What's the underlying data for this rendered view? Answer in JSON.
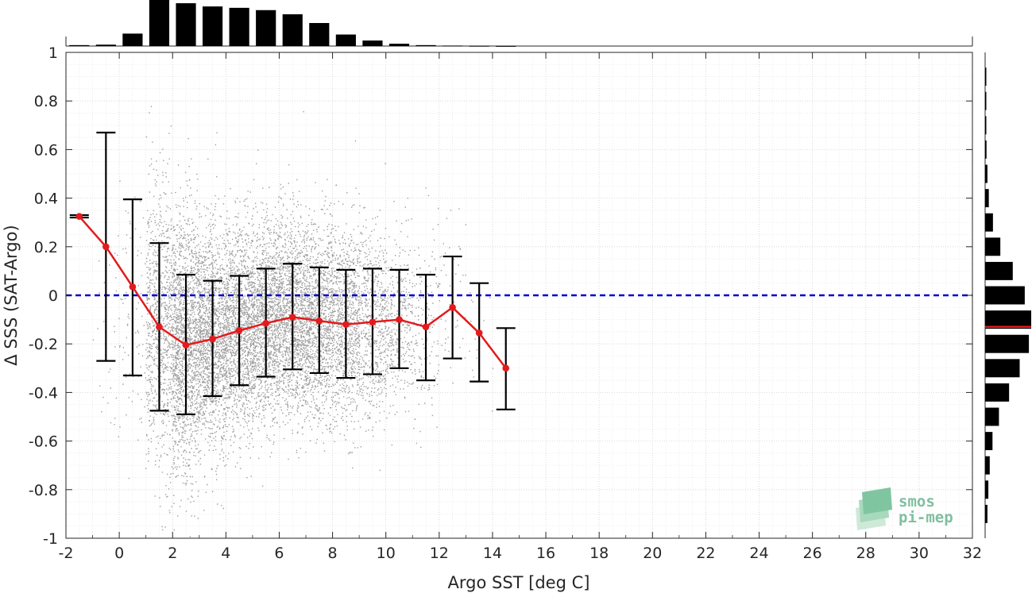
{
  "chart_data": {
    "type": "scatter",
    "xlabel": "Argo SST [deg C]",
    "ylabel": "Δ SSS (SAT-Argo)",
    "xlim": [
      -2,
      32
    ],
    "ylim": [
      -1,
      1
    ],
    "xticks": [
      -2,
      0,
      2,
      4,
      6,
      8,
      10,
      12,
      14,
      16,
      18,
      20,
      22,
      24,
      26,
      28,
      30,
      32
    ],
    "yticks": [
      -1,
      -0.8,
      -0.6,
      -0.4,
      -0.2,
      0,
      0.2,
      0.4,
      0.6,
      0.8,
      1
    ],
    "grid": true,
    "reference_line": {
      "y": 0,
      "style": "dashed",
      "color": "#0000cc"
    },
    "binned_mean": {
      "color": "#e41a1c",
      "x": [
        -1.5,
        -0.5,
        0.5,
        1.5,
        2.5,
        3.5,
        4.5,
        5.5,
        6.5,
        7.5,
        8.5,
        9.5,
        10.5,
        11.5,
        12.5,
        13.5,
        14.5
      ],
      "mean": [
        0.325,
        0.2,
        0.035,
        -0.13,
        -0.205,
        -0.18,
        -0.145,
        -0.115,
        -0.09,
        -0.105,
        -0.12,
        -0.11,
        -0.1,
        -0.13,
        -0.05,
        -0.155,
        -0.3
      ],
      "err_low": [
        0.32,
        -0.27,
        -0.33,
        -0.475,
        -0.49,
        -0.415,
        -0.37,
        -0.335,
        -0.305,
        -0.32,
        -0.34,
        -0.325,
        -0.3,
        -0.35,
        -0.26,
        -0.355,
        -0.47
      ],
      "err_high": [
        0.33,
        0.67,
        0.395,
        0.215,
        0.085,
        0.06,
        0.08,
        0.11,
        0.13,
        0.115,
        0.105,
        0.11,
        0.105,
        0.085,
        0.16,
        0.05,
        -0.135
      ]
    },
    "scatter": {
      "color": "#8c8c8c",
      "density_by_x": [
        {
          "x": -0.5,
          "weight": 0.02,
          "center": -0.1,
          "spread": 0.3
        },
        {
          "x": 0.5,
          "weight": 0.05,
          "center": -0.1,
          "spread": 0.3
        },
        {
          "x": 1.5,
          "weight": 0.55,
          "center": -0.13,
          "spread": 0.32
        },
        {
          "x": 2.5,
          "weight": 1.0,
          "center": -0.2,
          "spread": 0.3
        },
        {
          "x": 3.5,
          "weight": 0.9,
          "center": -0.18,
          "spread": 0.25
        },
        {
          "x": 4.5,
          "weight": 0.85,
          "center": -0.14,
          "spread": 0.23
        },
        {
          "x": 5.5,
          "weight": 0.85,
          "center": -0.11,
          "spread": 0.22
        },
        {
          "x": 6.5,
          "weight": 0.8,
          "center": -0.09,
          "spread": 0.22
        },
        {
          "x": 7.5,
          "weight": 0.7,
          "center": -0.1,
          "spread": 0.22
        },
        {
          "x": 8.5,
          "weight": 0.55,
          "center": -0.12,
          "spread": 0.22
        },
        {
          "x": 9.5,
          "weight": 0.35,
          "center": -0.11,
          "spread": 0.22
        },
        {
          "x": 10.5,
          "weight": 0.2,
          "center": -0.1,
          "spread": 0.2
        },
        {
          "x": 11.5,
          "weight": 0.1,
          "center": -0.13,
          "spread": 0.2
        },
        {
          "x": 12.5,
          "weight": 0.03,
          "center": -0.05,
          "spread": 0.2
        },
        {
          "x": 13.5,
          "weight": 0.01,
          "center": -0.15,
          "spread": 0.2
        }
      ]
    },
    "top_histogram": {
      "bins_x": [
        -1.5,
        -0.5,
        0.5,
        1.5,
        2.5,
        3.5,
        4.5,
        5.5,
        6.5,
        7.5,
        8.5,
        9.5,
        10.5,
        11.5,
        12.5,
        13.5,
        14.5
      ],
      "counts": [
        0.02,
        0.03,
        0.27,
        1.0,
        0.93,
        0.86,
        0.83,
        0.78,
        0.69,
        0.5,
        0.25,
        0.12,
        0.05,
        0.02,
        0.01,
        0.005,
        0.002
      ]
    },
    "right_histogram": {
      "bins_y": [
        0.9,
        0.8,
        0.7,
        0.6,
        0.5,
        0.4,
        0.3,
        0.2,
        0.1,
        0.0,
        -0.1,
        -0.2,
        -0.3,
        -0.4,
        -0.5,
        -0.6,
        -0.7,
        -0.8,
        -0.9
      ],
      "counts": [
        0.02,
        0.02,
        0.02,
        0.03,
        0.05,
        0.08,
        0.17,
        0.33,
        0.6,
        0.86,
        1.0,
        0.95,
        0.75,
        0.52,
        0.3,
        0.16,
        0.1,
        0.07,
        0.05
      ],
      "mean_line": {
        "y": -0.13,
        "color": "#e41a1c"
      }
    }
  },
  "logo": {
    "line1": "smos",
    "line2": "pi-mep",
    "color": "#7fbf9f"
  }
}
